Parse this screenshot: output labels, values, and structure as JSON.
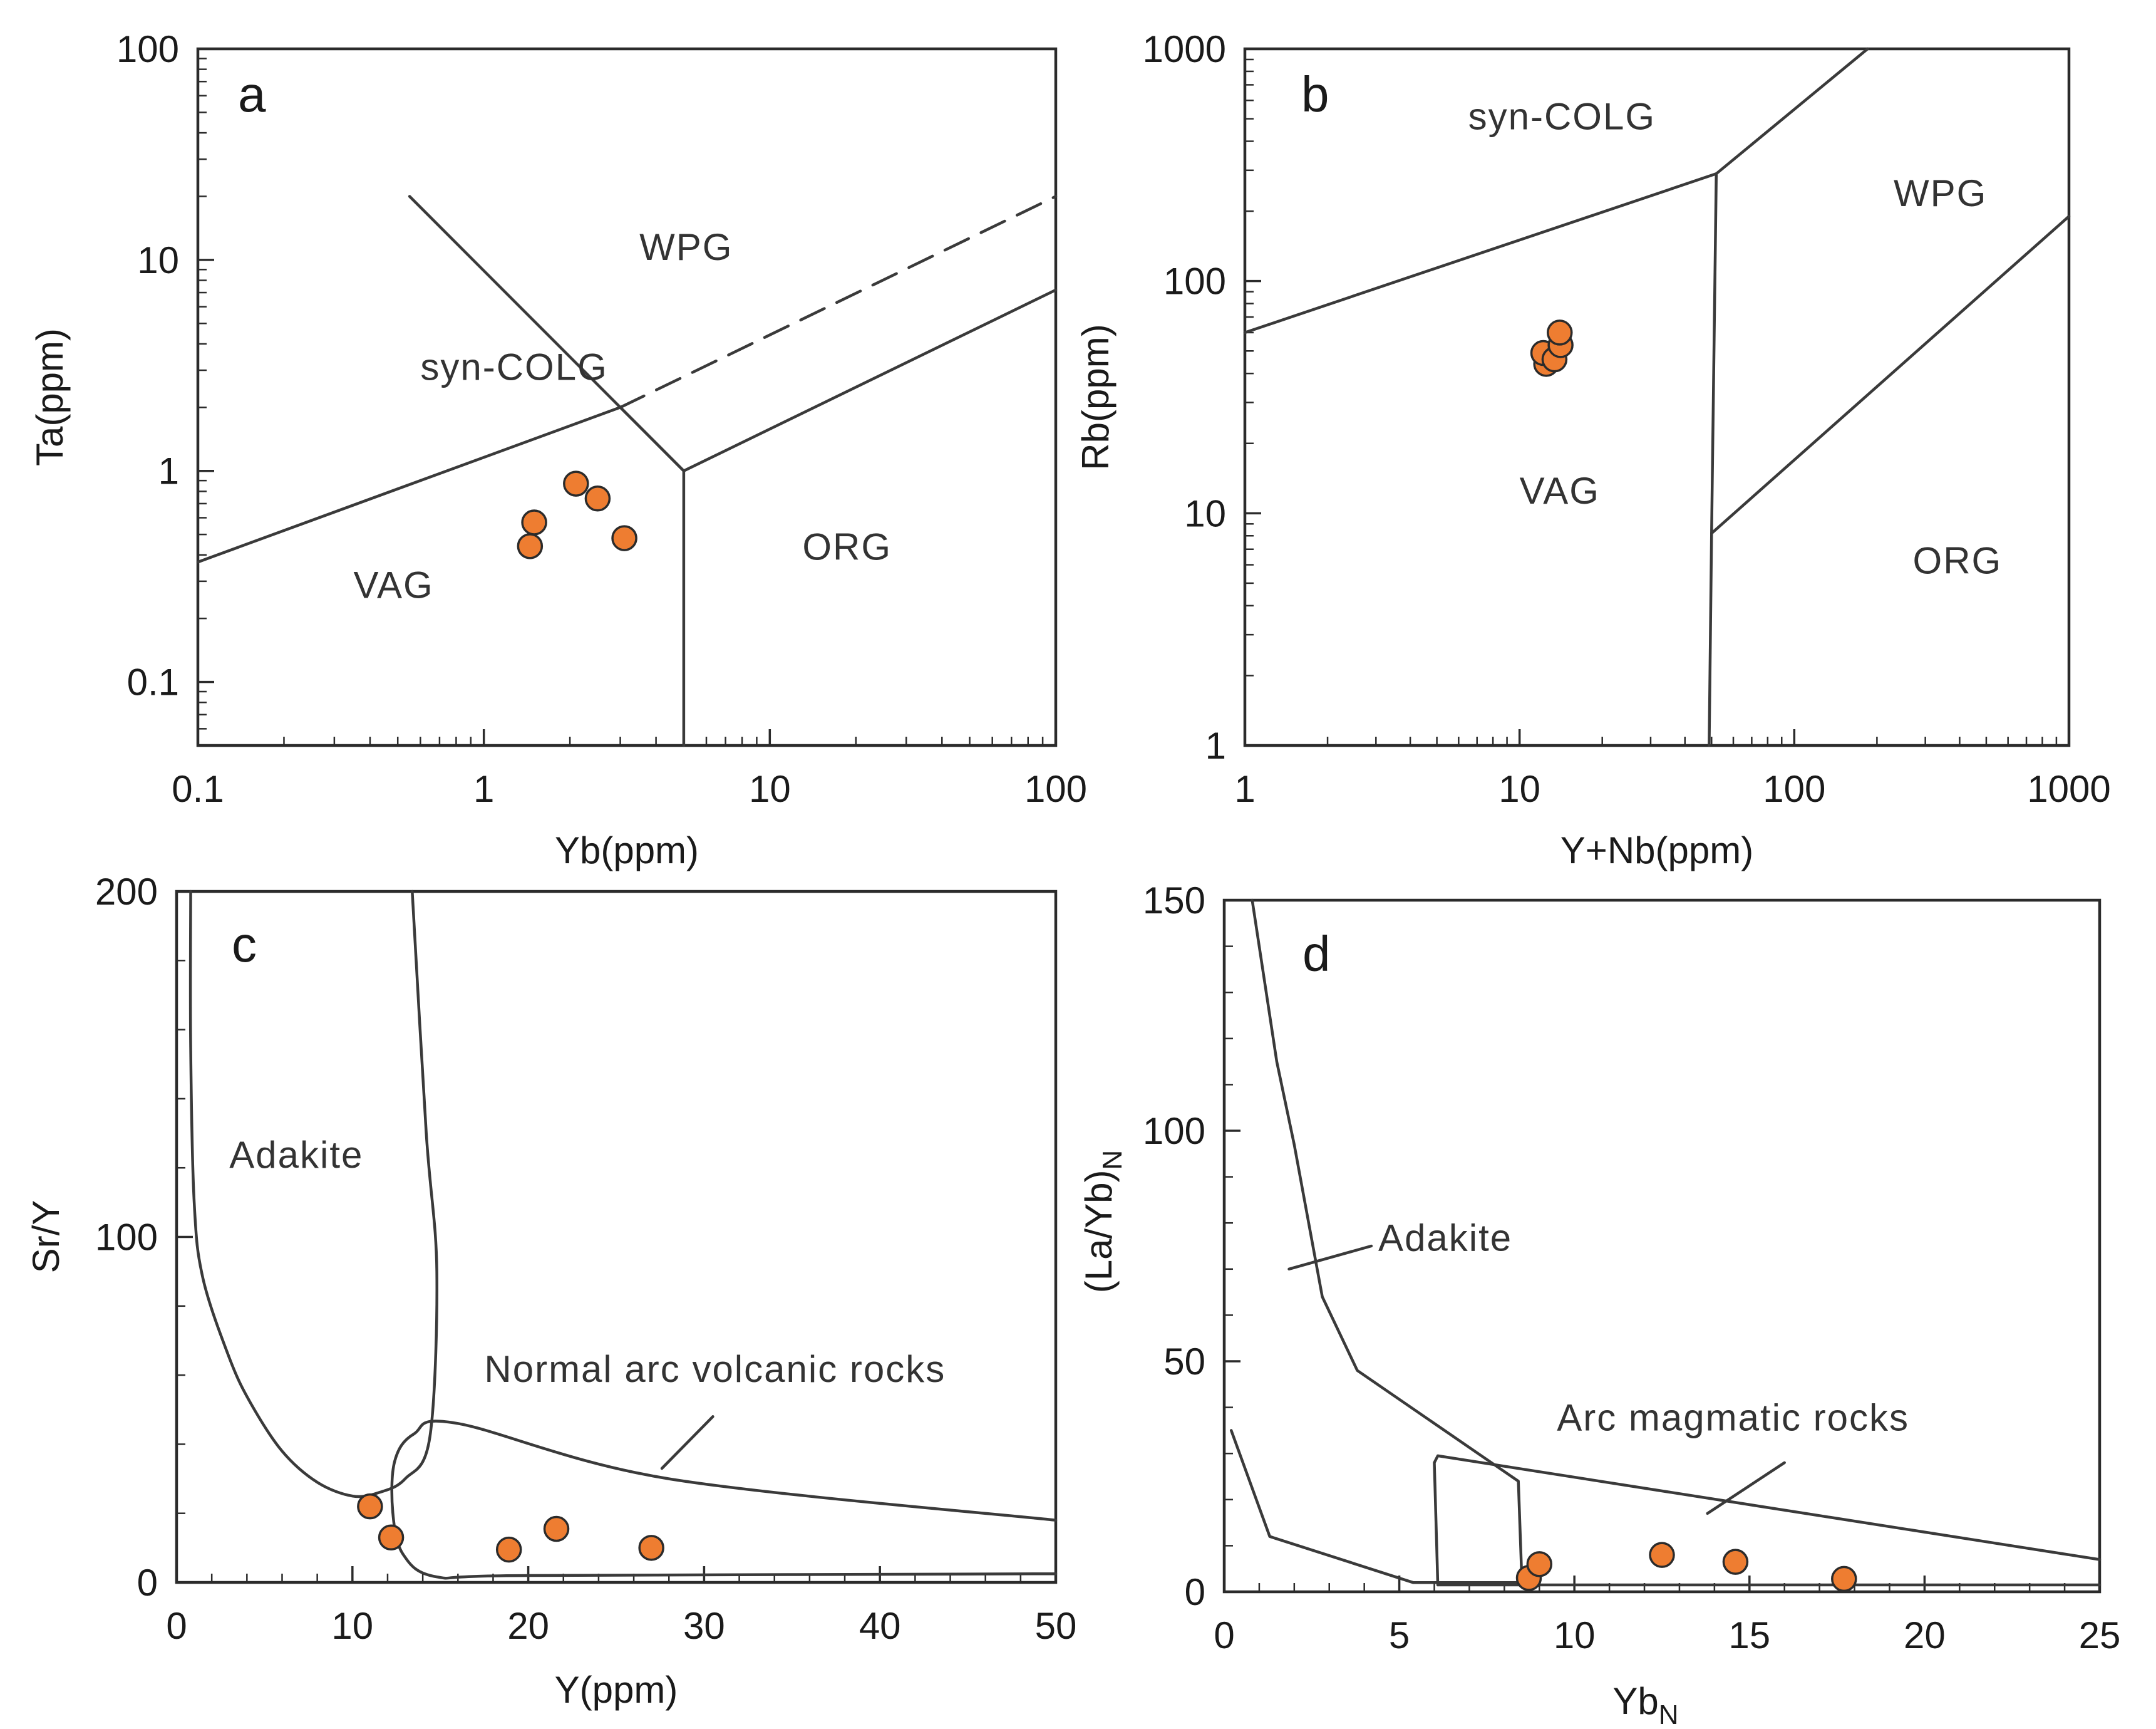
{
  "colors": {
    "marker": "#ee7d31",
    "line": "#3a3a3a",
    "frame": "#2b2b2b",
    "text": "#1a1a1a"
  },
  "chart_data": [
    {
      "panel": "a",
      "type": "scatter",
      "xlabel": "Yb(ppm)",
      "ylabel": "Ta(ppm)",
      "xscale": "log",
      "yscale": "log",
      "xlim": [
        0.1,
        100
      ],
      "ylim": [
        0.05,
        100
      ],
      "xticks": [
        0.1,
        1,
        10,
        100
      ],
      "xtick_labels": [
        "0.1",
        "1",
        "10",
        "100"
      ],
      "yticks": [
        0.1,
        1,
        10,
        100
      ],
      "ytick_labels": [
        "0.1",
        "1",
        "10",
        "100"
      ],
      "regions": [
        {
          "label": "WPG",
          "x": 3.5,
          "y": 10
        },
        {
          "label": "syn-COLG",
          "x": 0.6,
          "y": 2.7
        },
        {
          "label": "VAG",
          "x": 0.35,
          "y": 0.25
        },
        {
          "label": "ORG",
          "x": 13,
          "y": 0.38
        }
      ],
      "boundaries": [
        {
          "points": [
            [
              0.1,
              0.37
            ],
            [
              3,
              2
            ],
            [
              5,
              1
            ],
            [
              100,
              7.2
            ]
          ],
          "style": "solid"
        },
        {
          "points": [
            [
              0.55,
              20
            ],
            [
              5,
              1
            ],
            [
              5,
              0.05
            ]
          ],
          "style": "solid"
        },
        {
          "points": [
            [
              3,
              2
            ],
            [
              100,
              20
            ]
          ],
          "style": "dashed"
        }
      ],
      "points": [
        [
          1.45,
          0.44
        ],
        [
          1.5,
          0.57
        ],
        [
          2.1,
          0.87
        ],
        [
          2.5,
          0.74
        ],
        [
          3.1,
          0.48
        ]
      ]
    },
    {
      "panel": "b",
      "type": "scatter",
      "xlabel": "Y+Nb(ppm)",
      "ylabel": "Rb(ppm)",
      "xscale": "log",
      "yscale": "log",
      "xlim": [
        1,
        1000
      ],
      "ylim": [
        1,
        1000
      ],
      "xticks": [
        1,
        10,
        100,
        1000
      ],
      "xtick_labels": [
        "1",
        "10",
        "100",
        "1000"
      ],
      "yticks": [
        1,
        10,
        100,
        1000
      ],
      "ytick_labels": [
        "1",
        "10",
        "100",
        "1000"
      ],
      "regions": [
        {
          "label": "syn-COLG",
          "x": 6.5,
          "y": 450
        },
        {
          "label": "WPG",
          "x": 230,
          "y": 210
        },
        {
          "label": "VAG",
          "x": 10,
          "y": 11
        },
        {
          "label": "ORG",
          "x": 270,
          "y": 5.5
        }
      ],
      "boundaries": [
        {
          "points": [
            [
              1,
              60
            ],
            [
              52,
              290
            ],
            [
              185,
              1000
            ]
          ],
          "style": "solid"
        },
        {
          "points": [
            [
              52,
              290
            ],
            [
              50,
              8.2
            ],
            [
              49,
              1
            ]
          ],
          "style": "solid"
        },
        {
          "points": [
            [
              50,
              8.2
            ],
            [
              1000,
              190
            ]
          ],
          "style": "solid"
        }
      ],
      "points": [
        [
          12.5,
          44
        ],
        [
          12.2,
          49
        ],
        [
          13.4,
          46
        ],
        [
          14.1,
          53
        ],
        [
          14.0,
          60
        ]
      ]
    },
    {
      "panel": "c",
      "type": "scatter",
      "xlabel": "Y(ppm)",
      "ylabel": "Sr/Y",
      "xscale": "linear",
      "yscale": "linear",
      "xlim": [
        0,
        50
      ],
      "ylim": [
        0,
        200
      ],
      "xticks": [
        0,
        10,
        20,
        30,
        40,
        50
      ],
      "xtick_labels": [
        "0",
        "10",
        "20",
        "30",
        "40",
        "50"
      ],
      "yticks": [
        0,
        100,
        200
      ],
      "ytick_labels": [
        "0",
        "100",
        "200"
      ],
      "regions": [
        {
          "label": "Adakite",
          "x": 3,
          "y": 120
        },
        {
          "label": "Normal arc volcanic rocks",
          "x": 17.5,
          "y": 58
        }
      ],
      "boundaries": [
        {
          "points": [
            [
              0.8,
              200
            ],
            [
              0.8,
              155
            ],
            [
              1,
              110
            ],
            [
              1.5,
              88
            ],
            [
              3,
              65
            ],
            [
              4.2,
              52
            ],
            [
              6,
              38
            ],
            [
              8,
              29
            ],
            [
              10,
              25
            ],
            [
              11.5,
              26
            ],
            [
              13,
              30
            ],
            [
              14.4,
              42
            ],
            [
              14.8,
              90
            ],
            [
              14.2,
              130
            ],
            [
              13.4,
              200
            ]
          ],
          "style": "solid",
          "curve": true
        },
        {
          "points": [
            [
              50,
              18
            ],
            [
              28,
              30
            ],
            [
              16,
              46
            ],
            [
              13.5,
              43
            ],
            [
              12.4,
              35
            ],
            [
              12.3,
              20
            ],
            [
              12.9,
              8
            ],
            [
              14.8,
              1.6
            ],
            [
              20,
              2
            ],
            [
              50,
              2.5
            ]
          ],
          "style": "solid",
          "curve": true
        },
        {
          "points": [
            [
              27.6,
              33
            ],
            [
              30.5,
              48
            ]
          ],
          "style": "solid"
        }
      ],
      "points": [
        [
          11,
          22
        ],
        [
          12.2,
          13
        ],
        [
          18.9,
          9.5
        ],
        [
          21.6,
          15.5
        ],
        [
          27,
          10
        ]
      ]
    },
    {
      "panel": "d",
      "type": "scatter",
      "xlabel": "YbN",
      "ylabel": "(La/Yb)N",
      "xscale": "linear",
      "yscale": "linear",
      "xlim": [
        0,
        25
      ],
      "ylim": [
        0,
        150
      ],
      "xticks": [
        0,
        5,
        10,
        15,
        20,
        25
      ],
      "xtick_labels": [
        "0",
        "5",
        "10",
        "15",
        "20",
        "25"
      ],
      "yticks": [
        0,
        50,
        100,
        150
      ],
      "ytick_labels": [
        "0",
        "50",
        "100",
        "150"
      ],
      "regions": [
        {
          "label": "Adakite",
          "x": 4.4,
          "y": 74
        },
        {
          "label": "Arc magmatic rocks",
          "x": 9.5,
          "y": 35
        }
      ],
      "boundaries": [
        {
          "points": [
            [
              0.8,
              150
            ],
            [
              1.5,
              115
            ],
            [
              2,
              97
            ],
            [
              2.8,
              64
            ],
            [
              3.8,
              48
            ],
            [
              8.4,
              24
            ],
            [
              8.5,
              2.5
            ]
          ],
          "style": "solid"
        },
        {
          "points": [
            [
              0.2,
              35
            ],
            [
              1.3,
              12
            ],
            [
              5.4,
              2
            ],
            [
              8.5,
              2
            ]
          ],
          "style": "solid"
        },
        {
          "points": [
            [
              6.1,
              1.5
            ],
            [
              6.0,
              28
            ],
            [
              6.1,
              29.5
            ],
            [
              25,
              7
            ]
          ],
          "style": "solid"
        },
        {
          "points": [
            [
              6.1,
              1.5
            ],
            [
              25,
              1.5
            ]
          ],
          "style": "solid"
        },
        {
          "points": [
            [
              1.85,
              70
            ],
            [
              4.2,
              75
            ]
          ],
          "style": "solid"
        },
        {
          "points": [
            [
              13.8,
              17
            ],
            [
              16,
              28
            ]
          ],
          "style": "solid"
        }
      ],
      "points": [
        [
          8.7,
          3
        ],
        [
          9.0,
          6
        ],
        [
          12.5,
          8
        ],
        [
          14.6,
          6.5
        ],
        [
          17.7,
          2.8
        ]
      ]
    }
  ]
}
